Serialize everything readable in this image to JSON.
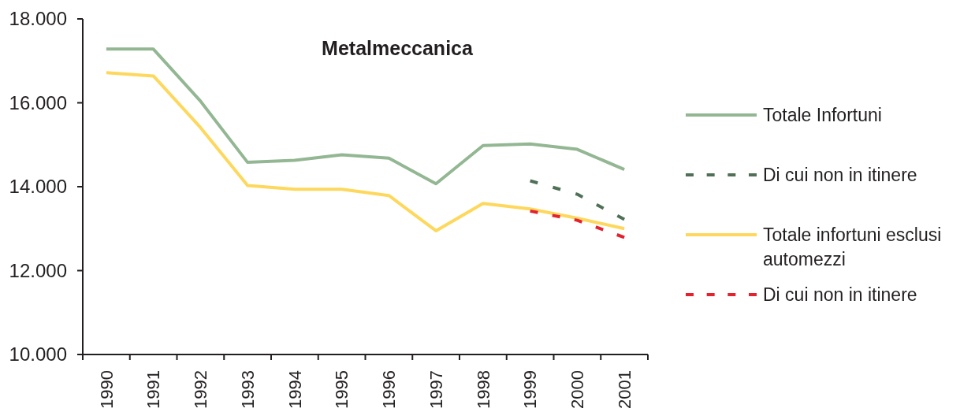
{
  "chart_data": {
    "type": "line",
    "title": "Metalmeccanica",
    "categories": [
      "1990",
      "1991",
      "1992",
      "1993",
      "1994",
      "1995",
      "1996",
      "1997",
      "1998",
      "1999",
      "2000",
      "2001"
    ],
    "series": [
      {
        "name": "Totale Infortuni",
        "color": "#93b793",
        "line_style": "solid",
        "values": [
          17280,
          17280,
          16040,
          14580,
          14630,
          14760,
          14680,
          14070,
          14980,
          15020,
          14890,
          14410
        ]
      },
      {
        "name": "Di cui non in itinere",
        "color": "#4f7057",
        "line_style": "dashed",
        "values": [
          null,
          null,
          null,
          null,
          null,
          null,
          null,
          null,
          null,
          14140,
          13820,
          13220
        ]
      },
      {
        "name": "Totale infortuni esclusi automezzi",
        "color": "#fdd85d",
        "line_style": "solid",
        "values": [
          16720,
          16640,
          15410,
          14030,
          13940,
          13940,
          13790,
          12950,
          13600,
          13470,
          13250,
          13000
        ]
      },
      {
        "name": "Di cui non in itinere",
        "color": "#e3212f",
        "line_style": "dashed",
        "values": [
          null,
          null,
          null,
          null,
          null,
          null,
          null,
          null,
          null,
          13420,
          13200,
          12790
        ]
      }
    ],
    "ylim": [
      10000,
      18000
    ],
    "yticks": [
      {
        "value": 10000,
        "label": "10.000"
      },
      {
        "value": 12000,
        "label": "12.000"
      },
      {
        "value": 14000,
        "label": "14.000"
      },
      {
        "value": 16000,
        "label": "16.000"
      },
      {
        "value": 18000,
        "label": "18.000"
      }
    ],
    "legend": "right"
  }
}
